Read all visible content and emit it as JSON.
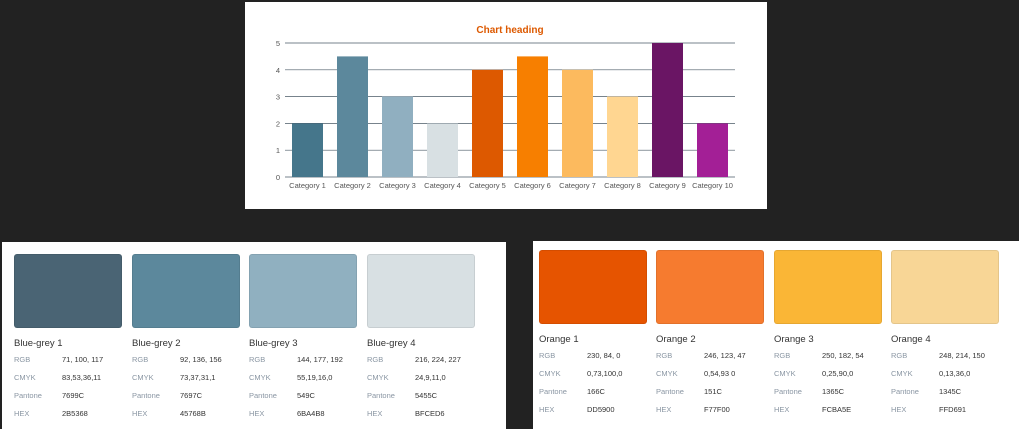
{
  "chart_data": {
    "type": "bar",
    "title": "Chart heading",
    "categories": [
      "Category 1",
      "Category 2",
      "Category 3",
      "Category 4",
      "Category 5",
      "Category 6",
      "Category 7",
      "Category 8",
      "Category 9",
      "Category 10"
    ],
    "values": [
      2,
      4.5,
      3,
      2,
      4,
      4.5,
      4,
      3,
      5,
      2
    ],
    "bar_colors": [
      "#45768B",
      "#5C889C",
      "#90AFC0",
      "#D8E0E3",
      "#DD5900",
      "#F77F00",
      "#FCBA5E",
      "#FFD691",
      "#6A1564",
      "#A31F96"
    ],
    "ylim": [
      0,
      5
    ],
    "yticks": [
      0,
      1,
      2,
      3,
      4,
      5
    ],
    "xlabel": "",
    "ylabel": "",
    "grid": true,
    "title_color": "#DD5900"
  },
  "palettes": {
    "blue_grey": [
      {
        "name": "Blue-grey 1",
        "color": "#4A6474",
        "rgb": "71, 100, 117",
        "cmyk": "83,53,36,11",
        "pantone": "7699C",
        "hex": "2B5368"
      },
      {
        "name": "Blue-grey 2",
        "color": "#5C889C",
        "rgb": "92, 136, 156",
        "cmyk": "73,37,31,1",
        "pantone": "7697C",
        "hex": "45768B"
      },
      {
        "name": "Blue-grey 3",
        "color": "#90B0C0",
        "rgb": "144, 177, 192",
        "cmyk": "55,19,16,0",
        "pantone": "549C",
        "hex": "6BA4B8"
      },
      {
        "name": "Blue-grey 4",
        "color": "#D8E0E3",
        "rgb": "216, 224, 227",
        "cmyk": "24,9,11,0",
        "pantone": "5455C",
        "hex": "BFCED6"
      }
    ],
    "orange": [
      {
        "name": "Orange 1",
        "color": "#E65400",
        "rgb": "230, 84, 0",
        "cmyk": "0,73,100,0",
        "pantone": "166C",
        "hex": "DD5900"
      },
      {
        "name": "Orange 2",
        "color": "#F67B2F",
        "rgb": "246, 123, 47",
        "cmyk": "0,54,93 0",
        "pantone": "151C",
        "hex": "F77F00"
      },
      {
        "name": "Orange 3",
        "color": "#FAB636",
        "rgb": "250, 182, 54",
        "cmyk": "0,25,90,0",
        "pantone": "1365C",
        "hex": "FCBA5E"
      },
      {
        "name": "Orange 4",
        "color": "#F8D696",
        "rgb": "248, 214, 150",
        "cmyk": "0,13,36,0",
        "pantone": "1345C",
        "hex": "FFD691"
      }
    ]
  },
  "spec_labels": {
    "rgb": "RGB",
    "cmyk": "CMYK",
    "pantone": "Pantone",
    "hex": "HEX"
  }
}
